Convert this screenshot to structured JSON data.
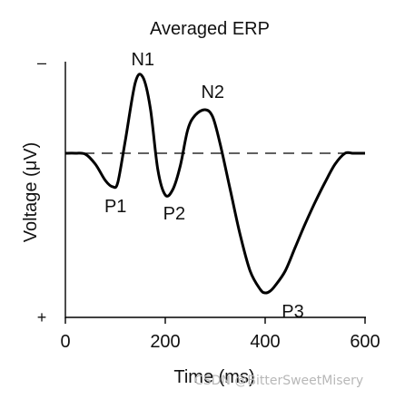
{
  "chart_data": {
    "type": "line",
    "title": "Averaged ERP",
    "xlabel": "Time (ms)",
    "ylabel": "Voltage (μV)",
    "xlim": [
      0,
      600
    ],
    "ylim": [
      -8,
      4
    ],
    "y_axis_inverted": true,
    "y_axis_end_labels": {
      "top": "–",
      "bottom": "+"
    },
    "x_ticks": [
      0,
      200,
      400,
      600
    ],
    "x_tick_labels": [
      "0",
      "200",
      "400",
      "600"
    ],
    "baseline": {
      "y": 0,
      "style": "dashed"
    },
    "grid": false,
    "legend": "none",
    "series": [
      {
        "x": [
          0,
          20,
          40,
          60,
          80,
          95,
          105,
          120,
          140,
          155,
          170,
          185,
          200,
          215,
          230,
          245,
          260,
          280,
          295,
          310,
          330,
          350,
          370,
          390,
          400,
          410,
          420,
          440,
          460,
          480,
          500,
          520,
          540,
          560,
          575,
          590,
          610
        ],
        "y": [
          0,
          0,
          -0.05,
          -0.6,
          -1.5,
          -1.85,
          -1.6,
          0.7,
          3.9,
          4.2,
          2.5,
          -0.9,
          -2.3,
          -2.0,
          -0.7,
          1.3,
          2.1,
          2.4,
          2.0,
          0.5,
          -2.0,
          -4.5,
          -6.5,
          -7.5,
          -7.7,
          -7.6,
          -7.3,
          -6.5,
          -5.2,
          -3.9,
          -2.7,
          -1.6,
          -0.6,
          0.0,
          0.0,
          0.0,
          0.0
        ],
        "color": "#000000"
      }
    ],
    "annotations": [
      {
        "text": "P1",
        "x": 104,
        "y": -1.9
      },
      {
        "text": "N1",
        "x": 155,
        "y": 4.2
      },
      {
        "text": "P2",
        "x": 218,
        "y": -2.3
      },
      {
        "text": "N2",
        "x": 295,
        "y": 2.4
      },
      {
        "text": "P3",
        "x": 410,
        "y": -7.7
      }
    ]
  },
  "watermark": "CSDN @BitterSweetMisery"
}
